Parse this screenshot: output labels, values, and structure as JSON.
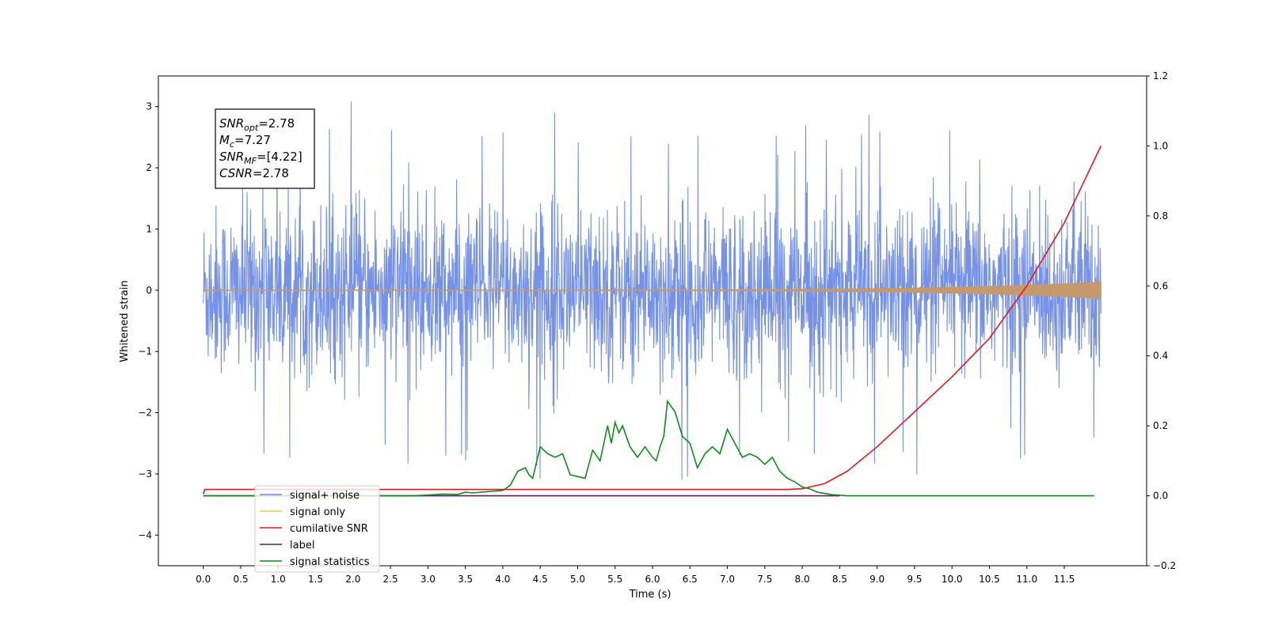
{
  "chart_data": {
    "type": "line",
    "xlabel": "Time (s)",
    "ylabel": "Whitened strain",
    "x_ticks": [
      "0.0",
      "0.5",
      "1.0",
      "1.5",
      "2.0",
      "2.5",
      "3.0",
      "3.5",
      "4.0",
      "4.5",
      "5.0",
      "5.5",
      "6.0",
      "6.5",
      "7.0",
      "7.5",
      "8.0",
      "8.5",
      "9.0",
      "9.5",
      "10.0",
      "10.5",
      "11.0",
      "11.5"
    ],
    "xlim": [
      -0.6,
      12.6
    ],
    "ylim_left": [
      -4.5,
      3.5
    ],
    "y_ticks_left": [
      "−4",
      "−3",
      "−2",
      "−1",
      "0",
      "1",
      "2",
      "3"
    ],
    "ylim_right": [
      -0.2,
      1.2
    ],
    "y_ticks_right": [
      "−0.2",
      "0.0",
      "0.2",
      "0.4",
      "0.6",
      "0.8",
      "1.0",
      "1.2"
    ],
    "grid": false,
    "legend_position": "lower-left",
    "annotation": {
      "lines": [
        {
          "main": "SNR",
          "sub": "opt",
          "rest": "=2.78"
        },
        {
          "main": "M",
          "sub": "c",
          "rest": "=7.27"
        },
        {
          "main": "SNR",
          "sub": "MF",
          "rest": "=[4.22]"
        },
        {
          "main": "CSNR",
          "sub": "",
          "rest": "=2.78"
        }
      ]
    },
    "series": [
      {
        "name": "signal+ noise",
        "color": "#6f8ce6",
        "axis": "left",
        "kind": "noise",
        "x_range": [
          0,
          11.99
        ],
        "typical_amplitude": 1.5,
        "max": 3.13,
        "min": -4.12
      },
      {
        "name": "signal only",
        "color": "#ffc34d",
        "axis": "left",
        "kind": "chirp",
        "x_range": [
          0,
          11.99
        ],
        "final_amplitude": 0.13
      },
      {
        "name": "cumilative SNR",
        "color": "#e8161c",
        "axis": "right",
        "x": [
          0,
          0.02,
          7.8,
          8.0,
          8.3,
          8.6,
          9.0,
          9.5,
          10.0,
          10.5,
          11.0,
          11.5,
          11.99
        ],
        "y": [
          0.005,
          0.018,
          0.018,
          0.02,
          0.035,
          0.07,
          0.14,
          0.24,
          0.34,
          0.45,
          0.6,
          0.78,
          1.0
        ]
      },
      {
        "name": "label",
        "color": "#5c1a6e",
        "axis": "right",
        "x": [
          0,
          8.5
        ],
        "y": [
          0,
          0
        ]
      },
      {
        "name": "signal statistics",
        "color": "#118a1b",
        "axis": "right",
        "x": [
          0,
          2.8,
          3.0,
          3.2,
          3.4,
          3.5,
          3.6,
          3.8,
          4.0,
          4.1,
          4.15,
          4.2,
          4.3,
          4.35,
          4.4,
          4.5,
          4.6,
          4.7,
          4.8,
          4.9,
          5.0,
          5.1,
          5.2,
          5.3,
          5.4,
          5.45,
          5.5,
          5.55,
          5.6,
          5.7,
          5.8,
          5.9,
          6.0,
          6.05,
          6.1,
          6.15,
          6.2,
          6.3,
          6.4,
          6.5,
          6.6,
          6.7,
          6.8,
          6.9,
          7.0,
          7.1,
          7.2,
          7.3,
          7.4,
          7.5,
          7.6,
          7.7,
          7.8,
          7.9,
          8.0,
          8.1,
          8.2,
          8.4,
          8.6,
          11.9
        ],
        "y": [
          0,
          0,
          0.002,
          0.005,
          0.004,
          0.01,
          0.008,
          0.012,
          0.015,
          0.03,
          0.05,
          0.07,
          0.08,
          0.06,
          0.05,
          0.14,
          0.12,
          0.11,
          0.12,
          0.06,
          0.055,
          0.05,
          0.13,
          0.1,
          0.2,
          0.15,
          0.21,
          0.18,
          0.2,
          0.14,
          0.11,
          0.14,
          0.11,
          0.1,
          0.14,
          0.17,
          0.27,
          0.24,
          0.17,
          0.15,
          0.08,
          0.12,
          0.14,
          0.12,
          0.19,
          0.15,
          0.11,
          0.12,
          0.11,
          0.09,
          0.11,
          0.07,
          0.05,
          0.04,
          0.025,
          0.02,
          0.01,
          0.003,
          0,
          0
        ]
      }
    ]
  }
}
